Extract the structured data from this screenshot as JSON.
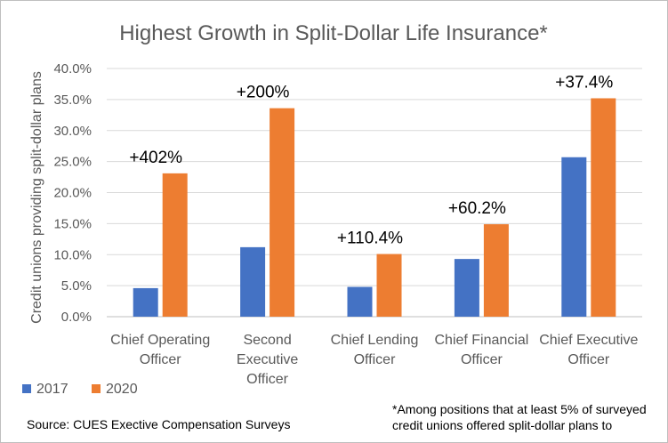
{
  "chart_data": {
    "type": "bar",
    "title": "Highest Growth in Split-Dollar Life Insurance*",
    "ylabel": "Credit unions providing split-dollar plans",
    "xlabel": "",
    "ylim": [
      0,
      40
    ],
    "yticks": [
      "0.0%",
      "5.0%",
      "10.0%",
      "15.0%",
      "20.0%",
      "25.0%",
      "30.0%",
      "35.0%",
      "40.0%"
    ],
    "grid": true,
    "legend_position": "bottom-left",
    "categories": [
      [
        "Chief Operating",
        "Officer"
      ],
      [
        "Second",
        "Executive",
        "Officer"
      ],
      [
        "Chief Lending",
        "Officer"
      ],
      [
        "Chief Financial",
        "Officer"
      ],
      [
        "Chief Executive",
        "Officer"
      ]
    ],
    "series": [
      {
        "name": "2017",
        "color": "#4472c4",
        "values": [
          4.6,
          11.2,
          4.8,
          9.3,
          25.7
        ]
      },
      {
        "name": "2020",
        "color": "#ed7d31",
        "values": [
          23.1,
          33.6,
          10.1,
          14.9,
          35.2
        ]
      }
    ],
    "annotations": [
      "+402%",
      "+200%",
      "+110.4%",
      "+60.2%",
      "+37.4%"
    ]
  },
  "footer": {
    "source": "Source: CUES Exective Compensation Surveys",
    "note_lines": [
      "*Among positions that at least 5% of surveyed",
      "credit unions offered split-dollar plans to"
    ]
  }
}
